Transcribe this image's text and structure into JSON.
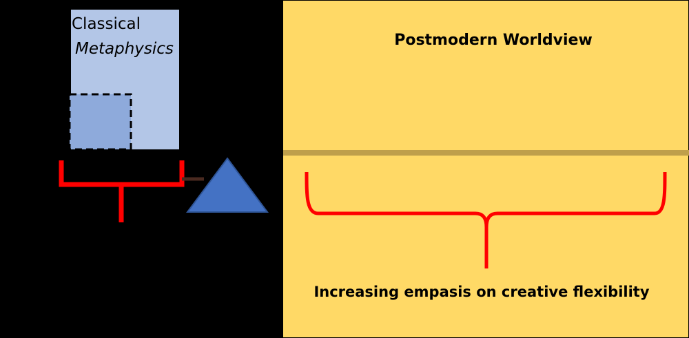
{
  "classical": {
    "line1": "Classical",
    "line2": "Metaphysics"
  },
  "postmodern": {
    "title": "Postmodern Worldview",
    "caption": "Increasing empasis on creative flexibility"
  },
  "colors": {
    "background": "#000000",
    "classical_panel": "#b3c6e7",
    "inner_square": "#8eaadb",
    "triangle": "#4472c4",
    "postmodern_panel": "#ffd966",
    "divider": "#bf9f4b",
    "bracket": "#ff0000"
  }
}
